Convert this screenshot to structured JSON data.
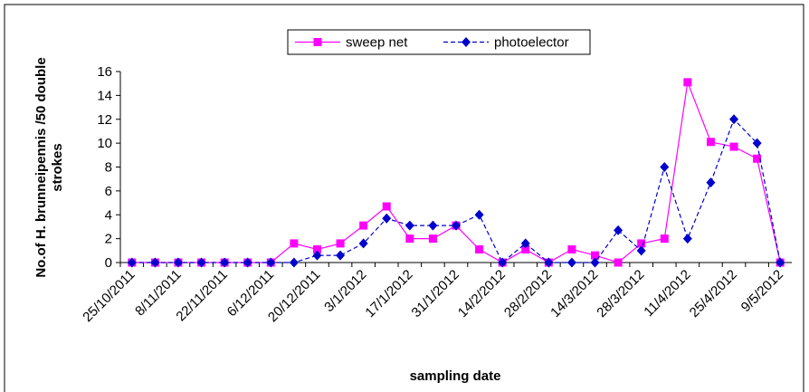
{
  "chart_data": {
    "type": "line",
    "xlabel": "sampling date",
    "ylabel": [
      "No.of H. brunneipennis /50 double",
      "strokes"
    ],
    "categories": [
      "25/10/2011",
      null,
      "8/11/2011",
      null,
      "22/11/2011",
      null,
      "6/12/2011",
      null,
      "20/12/2011",
      null,
      "3/1/2012",
      null,
      "17/1/2012",
      null,
      "31/1/2012",
      null,
      "14/2/2012",
      null,
      "28/2/2012",
      null,
      "14/3/2012",
      null,
      "28/3/2012",
      null,
      "11/4/2012",
      null,
      "25/4/2012",
      null,
      "9/5/2012"
    ],
    "series": [
      {
        "name": "sweep net",
        "color": "#ff00ff",
        "marker": "square",
        "dashed": false,
        "values": [
          0,
          0,
          0,
          0,
          0,
          0,
          0,
          1.6,
          1.1,
          1.6,
          3.1,
          4.7,
          2.0,
          2.0,
          3.1,
          1.1,
          0,
          1.1,
          0,
          1.1,
          0.6,
          0,
          1.6,
          2.0,
          15.1,
          10.1,
          9.7,
          8.7,
          0
        ]
      },
      {
        "name": "photoelector",
        "color": "#0000cc",
        "marker": "diamond",
        "dashed": true,
        "values": [
          0,
          0,
          0,
          0,
          0,
          0,
          0,
          0,
          0.6,
          0.6,
          1.6,
          3.7,
          3.1,
          3.1,
          3.1,
          4.0,
          0,
          1.6,
          0,
          0,
          0,
          2.7,
          1.0,
          8.0,
          2.0,
          6.7,
          12.0,
          10.0,
          0
        ]
      }
    ],
    "ylim": [
      0,
      16
    ],
    "yticks": [
      0,
      2,
      4,
      6,
      8,
      10,
      12,
      14,
      16
    ],
    "grid": false,
    "legend": "top"
  }
}
